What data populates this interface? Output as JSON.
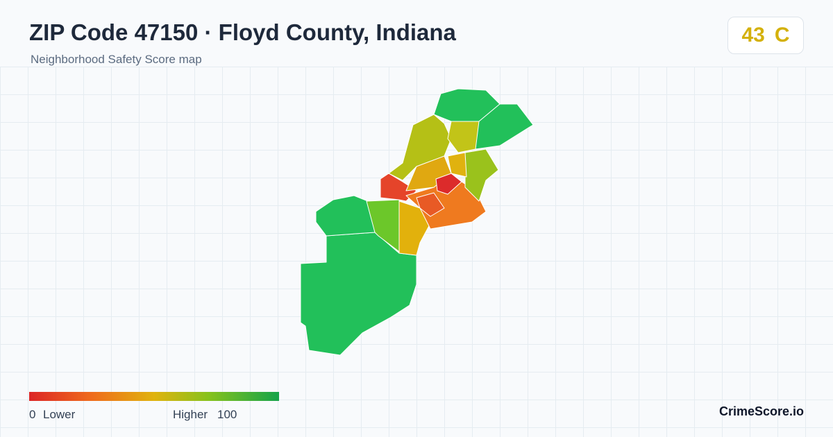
{
  "header": {
    "title": "ZIP Code 47150 · Floyd County, Indiana",
    "subtitle": "Neighborhood Safety Score map"
  },
  "score": {
    "value": 43,
    "grade": "C"
  },
  "legend": {
    "min": 0,
    "min_label": "Lower",
    "max_label": "Higher",
    "max": 100
  },
  "brand": "CrimeScore.io"
}
